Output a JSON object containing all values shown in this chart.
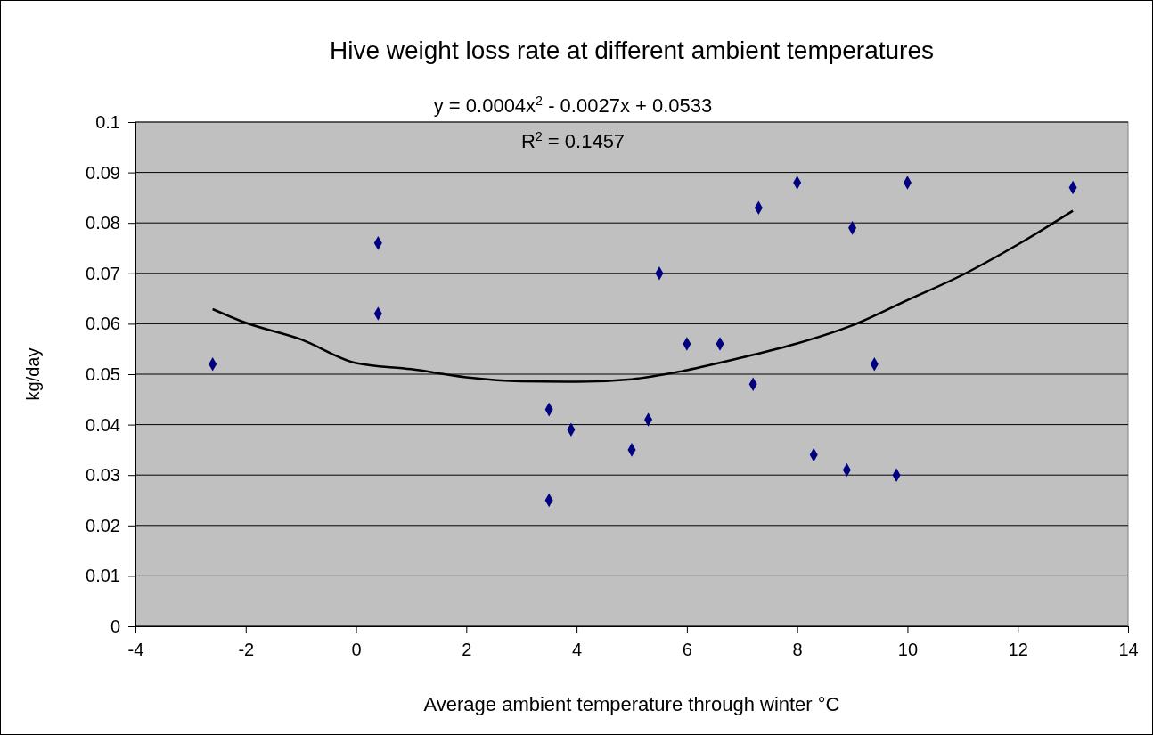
{
  "chart_data": {
    "type": "scatter",
    "title": "Hive weight loss rate at different ambient temperatures",
    "xlabel": "Average ambient temperature through winter °C",
    "ylabel": "kg/day",
    "annotations": [
      "y = 0.0004x$^{2}$ - 0.0027x + 0.0533",
      "R$^{2}$ = 0.1457"
    ],
    "xlim": [
      -4,
      14
    ],
    "xticks": [
      -4,
      -2,
      0,
      2,
      4,
      6,
      8,
      10,
      12,
      14
    ],
    "ylim": [
      0,
      0.1
    ],
    "yticks": [
      0,
      0.01,
      0.02,
      0.03,
      0.04,
      0.05,
      0.06,
      0.07,
      0.08,
      0.09,
      0.1
    ],
    "grid": "y",
    "series": [
      {
        "color": "#000080",
        "marker": "diamond",
        "x": [
          -2.6,
          0.4,
          0.4,
          3.5,
          3.9,
          3.5,
          5.0,
          5.3,
          5.5,
          6.0,
          6.6,
          7.2,
          7.3,
          8.0,
          8.3,
          8.9,
          9.0,
          9.4,
          9.8,
          10.0,
          13.0
        ],
        "values": [
          0.052,
          0.076,
          0.062,
          0.043,
          0.039,
          0.025,
          0.035,
          0.041,
          0.07,
          0.056,
          0.056,
          0.048,
          0.083,
          0.088,
          0.034,
          0.031,
          0.079,
          0.052,
          0.03,
          0.088,
          0.087
        ]
      },
      {
        "type": "line",
        "color": "#000000",
        "x": [
          -2.6,
          -2,
          -1,
          0,
          1,
          2,
          3,
          4,
          5,
          6,
          7,
          8,
          9,
          10,
          11,
          12,
          13
        ],
        "values": [
          0.0629,
          0.0602,
          0.0569,
          0.0522,
          0.051,
          0.0494,
          0.0486,
          0.0485,
          0.049,
          0.0508,
          0.0533,
          0.0561,
          0.0597,
          0.0647,
          0.0697,
          0.0757,
          0.0824
        ]
      }
    ]
  }
}
